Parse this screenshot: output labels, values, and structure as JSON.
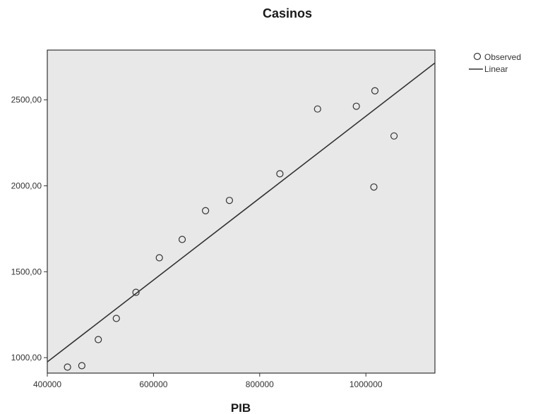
{
  "chart_data": {
    "type": "scatter",
    "title": "Casinos",
    "xlabel": "PIB",
    "ylabel": "",
    "xlim": [
      400000,
      1130000
    ],
    "ylim": [
      910,
      2790
    ],
    "x_ticks": [
      400000,
      600000,
      800000,
      1000000
    ],
    "x_tick_labels": [
      "400000",
      "600000",
      "800000",
      "1000000"
    ],
    "y_ticks": [
      1000,
      1500,
      2000,
      2500
    ],
    "y_tick_labels": [
      "1000,00",
      "1500,00",
      "2000,00",
      "2500,00"
    ],
    "grid": false,
    "legend_position": "top-right-outside",
    "legend": [
      "Observed",
      "Linear"
    ],
    "series": [
      {
        "name": "Observed",
        "kind": "points",
        "x": [
          438000,
          465000,
          496000,
          530000,
          567000,
          611000,
          654000,
          698000,
          743000,
          838000,
          909000,
          982000,
          1015000,
          1017000,
          1053000
        ],
        "y": [
          945,
          953,
          1105,
          1228,
          1380,
          1581,
          1688,
          1855,
          1915,
          2070,
          2447,
          2463,
          1993,
          2553,
          2290
        ]
      },
      {
        "name": "Linear",
        "kind": "line",
        "x": [
          400000,
          1130000
        ],
        "y": [
          975,
          2715
        ]
      }
    ],
    "colors": {
      "plot_background": "#e8e8e8",
      "frame": "#333333",
      "marker_stroke": "#333333",
      "line": "#333333"
    }
  }
}
